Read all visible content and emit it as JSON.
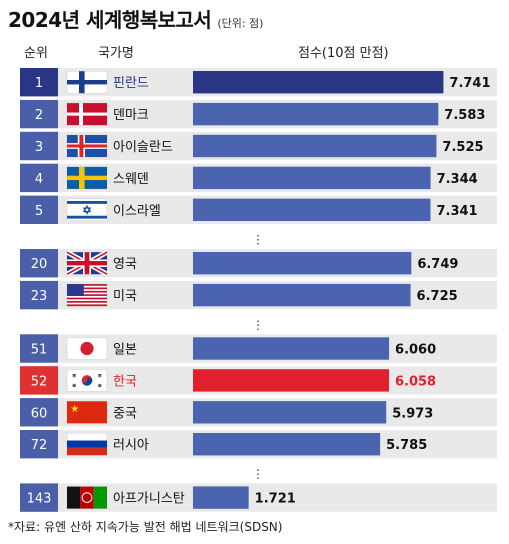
{
  "title": "2024년 세계행복보고서",
  "unit": "(단위: 점)",
  "headers": {
    "rank": "순위",
    "country": "국가명",
    "score": "점수(10점 만점)"
  },
  "source": "*자료: 유엔 산하 지속가능 발전 해법 네트워크(SDSN)",
  "ellipsis": "⋮",
  "colors": {
    "top": "#2a3585",
    "normal": "#4a64b0",
    "highlight": "#e0202c",
    "row_bg": "#e9e9e9"
  },
  "chart_data": {
    "type": "bar",
    "orientation": "horizontal",
    "title": "2024년 세계행복보고서",
    "unit": "(단위: 점)",
    "xlabel": "점수(10점 만점)",
    "groups": [
      [
        {
          "rank": "1",
          "country": "핀란드",
          "value": 7.741,
          "value_label": "7.741",
          "style": "top",
          "flag": "finland-flag"
        },
        {
          "rank": "2",
          "country": "덴마크",
          "value": 7.583,
          "value_label": "7.583",
          "style": "normal",
          "flag": "denmark-flag"
        },
        {
          "rank": "3",
          "country": "아이슬란드",
          "value": 7.525,
          "value_label": "7.525",
          "style": "normal",
          "flag": "iceland-flag"
        },
        {
          "rank": "4",
          "country": "스웨덴",
          "value": 7.344,
          "value_label": "7.344",
          "style": "normal",
          "flag": "sweden-flag"
        },
        {
          "rank": "5",
          "country": "이스라엘",
          "value": 7.341,
          "value_label": "7.341",
          "style": "normal",
          "flag": "israel-flag"
        }
      ],
      [
        {
          "rank": "20",
          "country": "영국",
          "value": 6.749,
          "value_label": "6.749",
          "style": "normal",
          "flag": "uk-flag"
        },
        {
          "rank": "23",
          "country": "미국",
          "value": 6.725,
          "value_label": "6.725",
          "style": "normal",
          "flag": "usa-flag"
        }
      ],
      [
        {
          "rank": "51",
          "country": "일본",
          "value": 6.06,
          "value_label": "6.060",
          "style": "normal",
          "flag": "japan-flag"
        },
        {
          "rank": "52",
          "country": "한국",
          "value": 6.058,
          "value_label": "6.058",
          "style": "highlight",
          "flag": "korea-flag"
        },
        {
          "rank": "60",
          "country": "중국",
          "value": 5.973,
          "value_label": "5.973",
          "style": "normal",
          "flag": "china-flag"
        },
        {
          "rank": "72",
          "country": "러시아",
          "value": 5.785,
          "value_label": "5.785",
          "style": "normal",
          "flag": "russia-flag"
        }
      ],
      [
        {
          "rank": "143",
          "country": "아프가니스탄",
          "value": 1.721,
          "value_label": "1.721",
          "style": "normal",
          "flag": "afghanistan-flag"
        }
      ]
    ]
  }
}
